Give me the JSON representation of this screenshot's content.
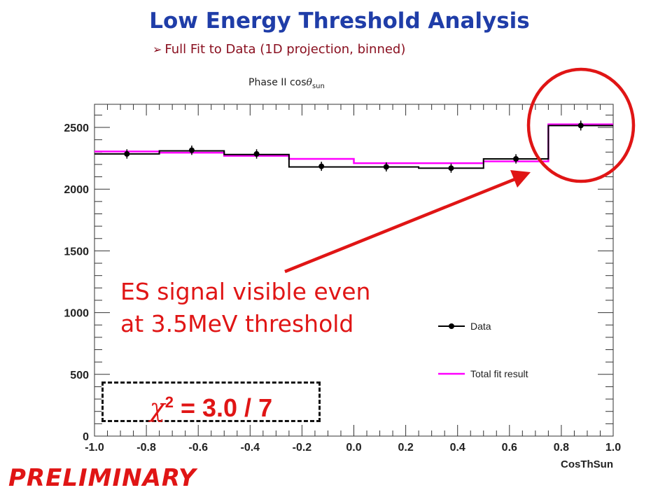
{
  "slide": {
    "title": "Low Energy Threshold Analysis",
    "subtitle": "Full Fit to Data (1D projection, binned)",
    "plot_title_prefix": "Phase II cos",
    "plot_title_symbol": "θ",
    "plot_title_subscript": "sun",
    "annotation_line1": "ES signal visible even",
    "annotation_line2": "at 3.5MeV threshold",
    "chi_symbol": "χ",
    "chi_sup": "2",
    "chi_value": " = 3.0 / 7",
    "preliminary": "PRELIMINARY"
  },
  "colors": {
    "title": "#1f3da8",
    "subtitle": "#8a1020",
    "annotation": "#e01515",
    "data": "#000000",
    "fit": "#ff00ff"
  },
  "chart_data": {
    "type": "histogram",
    "xlabel": "CosThSun",
    "ylabel": "",
    "xlim": [
      -1.0,
      1.0
    ],
    "ylim": [
      0,
      2500
    ],
    "x_ticks": [
      -1.0,
      -0.8,
      -0.6,
      -0.4,
      -0.2,
      0.0,
      0.2,
      0.4,
      0.6,
      0.8,
      1.0
    ],
    "x_tick_labels": [
      "-1.0",
      "-0.8",
      "-0.6",
      "-0.4",
      "-0.2",
      "0.0",
      "0.2",
      "0.4",
      "0.6",
      "0.8",
      "1.0"
    ],
    "y_ticks": [
      0,
      500,
      1000,
      1500,
      2000,
      2500
    ],
    "y_tick_labels": [
      "0",
      "500",
      "1000",
      "1500",
      "2000",
      "2500"
    ],
    "bin_edges": [
      -1.0,
      -0.75,
      -0.5,
      -0.25,
      0.0,
      0.25,
      0.5,
      0.75,
      1.0
    ],
    "series": [
      {
        "name": "Data",
        "style": "points",
        "x": [
          -0.875,
          -0.625,
          -0.375,
          -0.125,
          0.125,
          0.375,
          0.625,
          0.875
        ],
        "values": [
          2285,
          2315,
          2285,
          2185,
          2180,
          2170,
          2245,
          2515
        ],
        "errors": [
          38,
          38,
          38,
          37,
          37,
          37,
          38,
          40
        ],
        "data_bin_edges": [
          -1.0,
          -0.75,
          -0.5,
          -0.25,
          0.0,
          0.25,
          0.5,
          0.75,
          1.0
        ],
        "data_step_values": [
          2285,
          2310,
          2280,
          2180,
          2180,
          2170,
          2245,
          2515
        ]
      },
      {
        "name": "Total fit result",
        "style": "step",
        "values": [
          2305,
          2295,
          2270,
          2245,
          2210,
          2210,
          2225,
          2525
        ]
      }
    ],
    "legend_position": "lower-right"
  }
}
